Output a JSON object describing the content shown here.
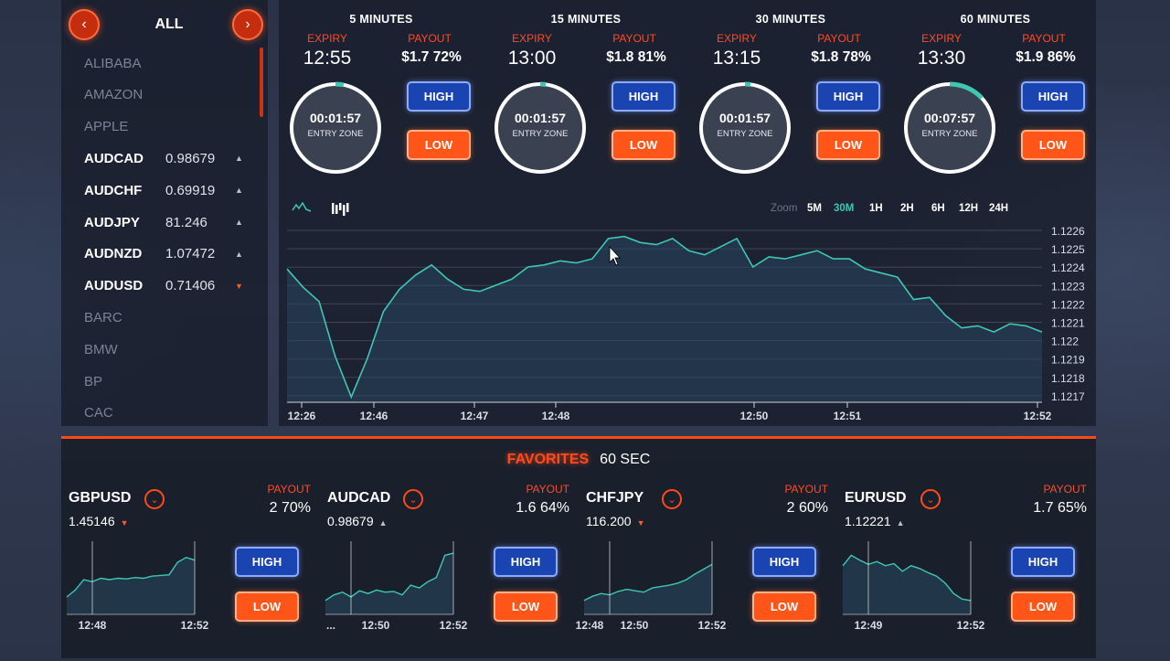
{
  "sidebar": {
    "title": "ALL",
    "prev_icon": "chevron-left",
    "next_icon": "chevron-right",
    "assets": [
      {
        "name": "ALIBABA",
        "price": "",
        "dir": ""
      },
      {
        "name": "AMAZON",
        "price": "",
        "dir": ""
      },
      {
        "name": "APPLE",
        "price": "",
        "dir": ""
      },
      {
        "name": "AUDCAD",
        "price": "0.98679",
        "dir": "up"
      },
      {
        "name": "AUDCHF",
        "price": "0.69919",
        "dir": "up"
      },
      {
        "name": "AUDJPY",
        "price": "81.246",
        "dir": "up"
      },
      {
        "name": "AUDNZD",
        "price": "1.07472",
        "dir": "up"
      },
      {
        "name": "AUDUSD",
        "price": "0.71406",
        "dir": "down"
      },
      {
        "name": "BARC",
        "price": "",
        "dir": ""
      },
      {
        "name": "BMW",
        "price": "",
        "dir": ""
      },
      {
        "name": "BP",
        "price": "",
        "dir": ""
      },
      {
        "name": "CAC",
        "price": "",
        "dir": ""
      }
    ]
  },
  "timers": [
    {
      "title": "5 MINUTES",
      "expiry_label": "EXPIRY",
      "expiry": "12:55",
      "payout_label": "PAYOUT",
      "payout": "$1.7 72%",
      "countdown": "00:01:57",
      "zone": "ENTRY ZONE",
      "progress": 0.03,
      "high": "HIGH",
      "low": "LOW"
    },
    {
      "title": "15 MINUTES",
      "expiry_label": "EXPIRY",
      "expiry": "13:00",
      "payout_label": "PAYOUT",
      "payout": "$1.8 81%",
      "countdown": "00:01:57",
      "zone": "ENTRY ZONE",
      "progress": 0.02,
      "high": "HIGH",
      "low": "LOW"
    },
    {
      "title": "30 MINUTES",
      "expiry_label": "EXPIRY",
      "expiry": "13:15",
      "payout_label": "PAYOUT",
      "payout": "$1.8 78%",
      "countdown": "00:01:57",
      "zone": "ENTRY ZONE",
      "progress": 0.02,
      "high": "HIGH",
      "low": "LOW"
    },
    {
      "title": "60 MINUTES",
      "expiry_label": "EXPIRY",
      "expiry": "13:30",
      "payout_label": "PAYOUT",
      "payout": "$1.9 86%",
      "countdown": "00:07:57",
      "zone": "ENTRY ZONE",
      "progress": 0.13,
      "high": "HIGH",
      "low": "LOW"
    }
  ],
  "zoom": {
    "label": "Zoom",
    "options": [
      "5M",
      "30M",
      "1H",
      "2H",
      "6H",
      "12H",
      "24H"
    ],
    "selected": "30M"
  },
  "colors": {
    "accent": "#ff4a18",
    "line": "#3fc7b4",
    "selected_zoom": "#39c9b3",
    "high": "#1b44b3",
    "low": "#ff5518"
  },
  "chart_data": {
    "type": "area",
    "y_ticks": [
      "1.1226",
      "1.1225",
      "1.1224",
      "1.1223",
      "1.1222",
      "1.1221",
      "1.122",
      "1.1219",
      "1.1218",
      "1.1217"
    ],
    "x_ticks": [
      "12:26",
      "12:46",
      "12:47",
      "12:48",
      "12:50",
      "12:51",
      "12:52"
    ],
    "ylim": [
      1.1217,
      1.1226
    ],
    "x": [
      0,
      1,
      2,
      3,
      4,
      5,
      6,
      7,
      8,
      9,
      10,
      11,
      12,
      13,
      14,
      15,
      16,
      17,
      18,
      19,
      20,
      21,
      22,
      23,
      24,
      25,
      26,
      27,
      28,
      29,
      30,
      31,
      32,
      33,
      34,
      35,
      36,
      37,
      38,
      39,
      40,
      41,
      42,
      43,
      44,
      45,
      46,
      47
    ],
    "y": [
      1.12241,
      1.12232,
      1.12225,
      1.12198,
      1.12178,
      1.12197,
      1.1222,
      1.12231,
      1.12238,
      1.12243,
      1.12236,
      1.12231,
      1.1223,
      1.12233,
      1.12236,
      1.12242,
      1.12243,
      1.12245,
      1.12244,
      1.12246,
      1.12256,
      1.12257,
      1.12254,
      1.12253,
      1.12256,
      1.1225,
      1.12248,
      1.12252,
      1.12256,
      1.12242,
      1.12247,
      1.12246,
      1.12248,
      1.1225,
      1.12246,
      1.12246,
      1.12241,
      1.12239,
      1.12237,
      1.12226,
      1.12227,
      1.12218,
      1.12212,
      1.12213,
      1.1221,
      1.12214,
      1.12213,
      1.1221
    ],
    "grid": true
  },
  "favorites": {
    "title": "FAVORITES",
    "period": "60 SEC",
    "items": [
      {
        "symbol": "GBPUSD",
        "price": "1.45146",
        "dir": "down",
        "payout_label": "PAYOUT",
        "payout": "2 70%",
        "high": "HIGH",
        "low": "LOW",
        "ticks": [
          "12:48",
          "12:52"
        ],
        "series": [
          0.25,
          0.35,
          0.5,
          0.47,
          0.52,
          0.5,
          0.52,
          0.51,
          0.53,
          0.52,
          0.55,
          0.56,
          0.57,
          0.75,
          0.82,
          0.78
        ]
      },
      {
        "symbol": "AUDCAD",
        "price": "0.98679",
        "dir": "up",
        "payout_label": "PAYOUT",
        "payout": "1.6 64%",
        "high": "HIGH",
        "low": "LOW",
        "ticks": [
          "...",
          "12:50",
          "12:52"
        ],
        "series": [
          0.2,
          0.28,
          0.32,
          0.25,
          0.34,
          0.3,
          0.35,
          0.32,
          0.33,
          0.28,
          0.42,
          0.38,
          0.47,
          0.53,
          0.85,
          0.88
        ]
      },
      {
        "symbol": "CHFJPY",
        "price": "116.200",
        "dir": "down",
        "payout_label": "PAYOUT",
        "payout": "2 60%",
        "high": "HIGH",
        "low": "LOW",
        "ticks": [
          "12:48",
          "12:50",
          "12:52"
        ],
        "series": [
          0.2,
          0.26,
          0.3,
          0.28,
          0.33,
          0.36,
          0.34,
          0.32,
          0.38,
          0.4,
          0.42,
          0.45,
          0.5,
          0.58,
          0.65,
          0.72
        ]
      },
      {
        "symbol": "EURUSD",
        "price": "1.12221",
        "dir": "up",
        "payout_label": "PAYOUT",
        "payout": "1.7 65%",
        "high": "HIGH",
        "low": "LOW",
        "ticks": [
          "12:49",
          "12:52"
        ],
        "series": [
          0.7,
          0.85,
          0.78,
          0.72,
          0.76,
          0.7,
          0.73,
          0.62,
          0.7,
          0.66,
          0.6,
          0.55,
          0.45,
          0.3,
          0.22,
          0.2
        ]
      }
    ]
  }
}
